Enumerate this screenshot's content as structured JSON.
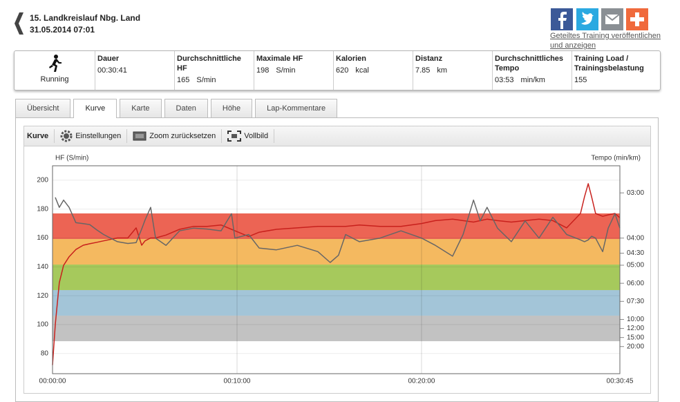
{
  "header": {
    "title": "15. Landkreislauf Nbg. Land",
    "date": "31.05.2014 07:01",
    "share_link": "Geteiltes Training veröffentlichen und anzeigen"
  },
  "summary": {
    "sport": "Running",
    "stats": [
      {
        "label": "Dauer",
        "value": "00:30:41"
      },
      {
        "label": "Durchschnittliche HF",
        "value": "165",
        "unit": "S/min"
      },
      {
        "label": "Maximale HF",
        "value": "198",
        "unit": "S/min"
      },
      {
        "label": "Kalorien",
        "value": "620",
        "unit": "kcal"
      },
      {
        "label": "Distanz",
        "value": "7.85",
        "unit": "km"
      },
      {
        "label": "Durchschnittliches Tempo",
        "value": "03:53",
        "unit": "min/km"
      },
      {
        "label": "Training Load / Trainingsbelastung",
        "value": "155"
      }
    ]
  },
  "tabs": [
    "Übersicht",
    "Kurve",
    "Karte",
    "Daten",
    "Höhe",
    "Lap-Kommentare"
  ],
  "active_tab": 1,
  "toolbar": {
    "title": "Kurve",
    "buttons": [
      "Einstellungen",
      "Zoom zurücksetzen",
      "Vollbild"
    ]
  },
  "chart_data": {
    "type": "line",
    "y_label": "HF (S/min)",
    "y2_label": "Tempo (min/km)",
    "x": [
      0,
      9,
      22,
      36,
      54,
      76,
      100,
      121,
      144,
      166,
      211,
      245,
      272,
      290,
      301,
      319,
      335,
      369,
      413,
      458,
      503,
      548,
      582,
      593,
      638,
      672,
      728,
      796,
      863,
      903,
      930,
      953,
      998,
      1065,
      1133,
      1200,
      1245,
      1301,
      1335,
      1369,
      1391,
      1413,
      1447,
      1492,
      1537,
      1582,
      1627,
      1672,
      1717,
      1730,
      1742,
      1753,
      1766,
      1789,
      1807,
      1829,
      1845
    ],
    "xlim": [
      0,
      1845
    ],
    "xticks": [
      {
        "value": 0,
        "label": "00:00:00"
      },
      {
        "value": 600,
        "label": "00:10:00"
      },
      {
        "value": 1200,
        "label": "00:20:00"
      },
      {
        "value": 1845,
        "label": "00:30:45"
      }
    ],
    "ylim": [
      66,
      210
    ],
    "yticks": [
      80,
      100,
      120,
      140,
      160,
      180,
      200
    ],
    "y2lim": [
      0,
      23
    ],
    "y2ticks": [
      {
        "value": 20,
        "label": "03:00"
      },
      {
        "value": 15,
        "label": "04:00"
      },
      {
        "value": 13.33,
        "label": "04:30"
      },
      {
        "value": 12,
        "label": "05:00"
      },
      {
        "value": 10,
        "label": "06:00"
      },
      {
        "value": 8,
        "label": "07:30"
      },
      {
        "value": 6,
        "label": "10:00"
      },
      {
        "value": 5,
        "label": "12:00"
      },
      {
        "value": 4,
        "label": "15:00"
      },
      {
        "value": 3,
        "label": "20:00"
      }
    ],
    "grid": true,
    "zones": [
      {
        "from": 88.5,
        "to": 106.2,
        "color": "#c2c2c2"
      },
      {
        "from": 106.2,
        "to": 123.9,
        "color": "#a3c5d8"
      },
      {
        "from": 123.9,
        "to": 141.6,
        "color": "#a6c95c"
      },
      {
        "from": 141.6,
        "to": 159.3,
        "color": "#f4b960"
      },
      {
        "from": 159.3,
        "to": 177,
        "color": "#ec6454"
      }
    ],
    "series": [
      {
        "color": "#c8201c",
        "values": [
          72,
          100,
          129,
          141,
          147,
          152,
          155,
          156,
          157,
          158,
          160,
          160,
          167,
          155,
          158,
          160,
          160,
          162,
          166,
          168,
          168,
          169,
          166,
          165,
          161,
          164,
          166,
          167,
          168,
          168,
          168,
          168,
          169,
          168,
          168,
          170,
          172,
          173,
          172,
          171,
          172,
          173,
          172,
          171,
          172,
          173,
          172,
          167,
          177,
          188.5,
          197.6,
          188.5,
          177,
          175,
          176,
          177,
          174
        ]
      },
      {
        "color": "#666666",
        "axis": "y2",
        "values": [
          null,
          19.5,
          18.4,
          19.2,
          18.4,
          16.7,
          16.6,
          16.5,
          15.9,
          15.4,
          14.6,
          14.4,
          14.5,
          16.0,
          17.0,
          18.4,
          15.0,
          14.2,
          15.8,
          16.1,
          16.0,
          15.8,
          17.7,
          15.0,
          15.4,
          13.9,
          13.7,
          14.2,
          13.5,
          12.3,
          13.1,
          15.4,
          14.6,
          15.0,
          15.8,
          15.0,
          14.2,
          13.0,
          15.4,
          19.2,
          16.9,
          18.4,
          16.1,
          14.6,
          16.9,
          15.0,
          17.3,
          15.4,
          14.8,
          14.6,
          14.8,
          15.2,
          15.0,
          13.5,
          16.1,
          17.7,
          16.1
        ]
      }
    ]
  }
}
